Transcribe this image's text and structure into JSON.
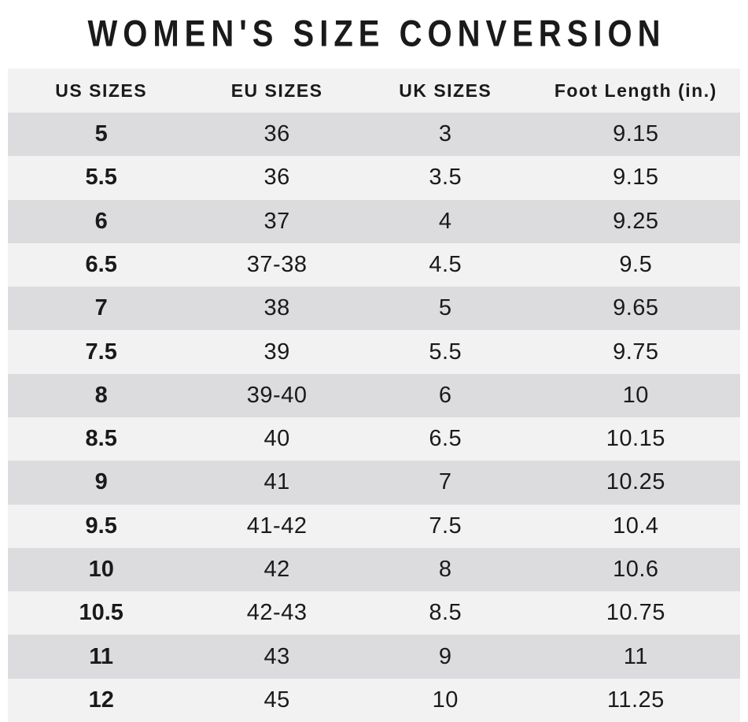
{
  "chart_data": {
    "type": "table",
    "title": "WOMEN'S SIZE CONVERSION",
    "columns": [
      "US SIZES",
      "EU SIZES",
      "UK SIZES",
      "Foot Length (in.)"
    ],
    "rows": [
      [
        "5",
        "36",
        "3",
        "9.15"
      ],
      [
        "5.5",
        "36",
        "3.5",
        "9.15"
      ],
      [
        "6",
        "37",
        "4",
        "9.25"
      ],
      [
        "6.5",
        "37-38",
        "4.5",
        "9.5"
      ],
      [
        "7",
        "38",
        "5",
        "9.65"
      ],
      [
        "7.5",
        "39",
        "5.5",
        "9.75"
      ],
      [
        "8",
        "39-40",
        "6",
        "10"
      ],
      [
        "8.5",
        "40",
        "6.5",
        "10.15"
      ],
      [
        "9",
        "41",
        "7",
        "10.25"
      ],
      [
        "9.5",
        "41-42",
        "7.5",
        "10.4"
      ],
      [
        "10",
        "42",
        "8",
        "10.6"
      ],
      [
        "10.5",
        "42-43",
        "8.5",
        "10.75"
      ],
      [
        "11",
        "43",
        "9",
        "11"
      ],
      [
        "12",
        "45",
        "10",
        "11.25"
      ]
    ],
    "layout": {
      "striped": true,
      "first_row_shade": "dark",
      "bold_column": "US SIZES"
    }
  },
  "colors": {
    "row_dark": "#dcdcde",
    "row_light": "#f2f2f3",
    "header_bg": "#f2f2f3",
    "text": "#1a1a1a",
    "background": "#ffffff"
  }
}
